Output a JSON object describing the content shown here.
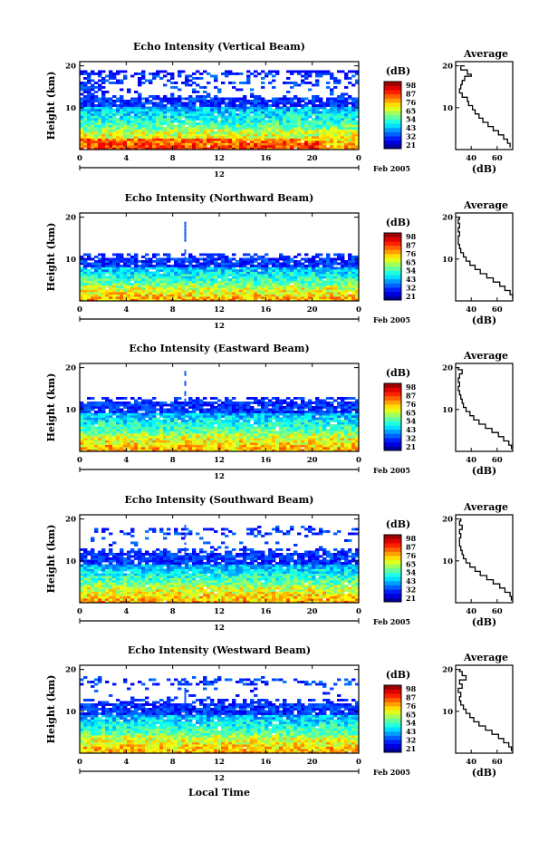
{
  "chart_data": [
    {
      "type": "heatmap",
      "title": "Echo Intensity (Vertical Beam)",
      "ylabel": "Height (km)",
      "yticks": [
        "20",
        "10"
      ],
      "xticks": [
        "0",
        "4",
        "8",
        "12",
        "16",
        "20",
        "0"
      ],
      "date_tick": "12",
      "date_suffix": "Feb 2005",
      "colorbar": {
        "unit": "(dB)",
        "ticks": [
          "98",
          "87",
          "76",
          "65",
          "54",
          "43",
          "32",
          "21"
        ]
      },
      "echo_top_km": 18.5,
      "layer_km": [
        10.5,
        12.5
      ],
      "bright_below_km": 5,
      "average": {
        "title": "Average",
        "xlabel": "(dB)",
        "xticks": [
          "40",
          "60"
        ],
        "yticks": [
          "20",
          "10"
        ],
        "profile": [
          [
            70,
            0.5
          ],
          [
            68,
            1.5
          ],
          [
            65,
            2.5
          ],
          [
            61,
            3.5
          ],
          [
            57,
            4.5
          ],
          [
            53,
            5.5
          ],
          [
            49,
            6.5
          ],
          [
            46,
            7.5
          ],
          [
            43,
            8.5
          ],
          [
            41,
            9.5
          ],
          [
            38,
            10.5
          ],
          [
            37,
            11.5
          ],
          [
            33,
            12.5
          ],
          [
            31,
            13.5
          ],
          [
            32,
            14.5
          ],
          [
            33,
            15.5
          ],
          [
            35,
            16.5
          ],
          [
            40,
            17.5
          ],
          [
            37,
            18
          ],
          [
            32,
            19
          ],
          [
            35,
            20
          ]
        ]
      }
    },
    {
      "type": "heatmap",
      "title": "Echo Intensity (Northward Beam)",
      "ylabel": "Height (km)",
      "yticks": [
        "20",
        "10"
      ],
      "xticks": [
        "0",
        "4",
        "8",
        "12",
        "16",
        "20",
        "0"
      ],
      "date_tick": "12",
      "date_suffix": "Feb 2005",
      "colorbar": {
        "unit": "(dB)",
        "ticks": [
          "98",
          "87",
          "76",
          "65",
          "54",
          "43",
          "32",
          "21"
        ]
      },
      "echo_top_km": 11,
      "layer_km": [
        8.5,
        10.5
      ],
      "bright_below_km": 4,
      "average": {
        "title": "Average",
        "xlabel": "(dB)",
        "xticks": [
          "40",
          "60"
        ],
        "yticks": [
          "20",
          "10"
        ],
        "profile": [
          [
            72,
            0.5
          ],
          [
            70,
            1.5
          ],
          [
            66,
            2.5
          ],
          [
            62,
            3.5
          ],
          [
            57,
            4.5
          ],
          [
            52,
            5.5
          ],
          [
            47,
            6.5
          ],
          [
            43,
            7.5
          ],
          [
            39,
            8.5
          ],
          [
            36,
            9.5
          ],
          [
            34,
            10.5
          ],
          [
            32,
            11.5
          ],
          [
            31,
            12.5
          ],
          [
            30,
            13.5
          ],
          [
            30,
            14.5
          ],
          [
            31,
            15.5
          ],
          [
            30,
            16.5
          ],
          [
            31,
            17.5
          ],
          [
            30,
            18.5
          ],
          [
            31,
            19.5
          ],
          [
            30,
            20
          ]
        ]
      }
    },
    {
      "type": "heatmap",
      "title": "Echo Intensity (Eastward Beam)",
      "ylabel": "Height (km)",
      "yticks": [
        "20",
        "10"
      ],
      "xticks": [
        "0",
        "4",
        "8",
        "12",
        "16",
        "20",
        "0"
      ],
      "date_tick": "12",
      "date_suffix": "Feb 2005",
      "colorbar": {
        "unit": "(dB)",
        "ticks": [
          "98",
          "87",
          "76",
          "65",
          "54",
          "43",
          "32",
          "21"
        ]
      },
      "echo_top_km": 12.5,
      "layer_km": [
        9.5,
        12
      ],
      "bright_below_km": 4.5,
      "average": {
        "title": "Average",
        "xlabel": "(dB)",
        "xticks": [
          "40",
          "60"
        ],
        "yticks": [
          "20",
          "10"
        ],
        "profile": [
          [
            71,
            0.5
          ],
          [
            69,
            1.5
          ],
          [
            65,
            2.5
          ],
          [
            61,
            3.5
          ],
          [
            56,
            4.5
          ],
          [
            51,
            5.5
          ],
          [
            46,
            6.5
          ],
          [
            42,
            7.5
          ],
          [
            39,
            8.5
          ],
          [
            36,
            9.5
          ],
          [
            34,
            10.5
          ],
          [
            33,
            11.5
          ],
          [
            32,
            12.5
          ],
          [
            31,
            13.5
          ],
          [
            30,
            14.5
          ],
          [
            31,
            15.5
          ],
          [
            30,
            16.5
          ],
          [
            31,
            17.5
          ],
          [
            33,
            18.5
          ],
          [
            30,
            19.5
          ],
          [
            31,
            20
          ]
        ]
      }
    },
    {
      "type": "heatmap",
      "title": "Echo Intensity (Southward Beam)",
      "ylabel": "Height (km)",
      "yticks": [
        "20",
        "10"
      ],
      "xticks": [
        "0",
        "4",
        "8",
        "12",
        "16",
        "20",
        "0"
      ],
      "date_tick": "12",
      "date_suffix": "Feb 2005",
      "colorbar": {
        "unit": "(dB)",
        "ticks": [
          "98",
          "87",
          "76",
          "65",
          "54",
          "43",
          "32",
          "21"
        ]
      },
      "echo_top_km": 18.5,
      "layer_km": [
        9.5,
        12
      ],
      "bright_below_km": 4.5,
      "average": {
        "title": "Average",
        "xlabel": "(dB)",
        "xticks": [
          "40",
          "60"
        ],
        "yticks": [
          "20",
          "10"
        ],
        "profile": [
          [
            71,
            0.5
          ],
          [
            70,
            1.5
          ],
          [
            66,
            2.5
          ],
          [
            62,
            3.5
          ],
          [
            57,
            4.5
          ],
          [
            52,
            5.5
          ],
          [
            47,
            6.5
          ],
          [
            43,
            7.5
          ],
          [
            39,
            8.5
          ],
          [
            36,
            9.5
          ],
          [
            34,
            10.5
          ],
          [
            33,
            11.5
          ],
          [
            32,
            12.5
          ],
          [
            31,
            13.5
          ],
          [
            31,
            14.5
          ],
          [
            32,
            15.5
          ],
          [
            31,
            16.5
          ],
          [
            33,
            17.5
          ],
          [
            31,
            18.5
          ],
          [
            32,
            19.5
          ],
          [
            31,
            20
          ]
        ]
      }
    },
    {
      "type": "heatmap",
      "title": "Echo Intensity (Westward Beam)",
      "ylabel": "Height (km)",
      "yticks": [
        "20",
        "10"
      ],
      "xticks": [
        "0",
        "4",
        "8",
        "12",
        "16",
        "20",
        "0"
      ],
      "date_tick": "12",
      "date_suffix": "Feb 2005",
      "xlabel": "Local Time",
      "colorbar": {
        "unit": "(dB)",
        "ticks": [
          "98",
          "87",
          "76",
          "65",
          "54",
          "43",
          "32",
          "21"
        ]
      },
      "echo_top_km": 18.5,
      "layer_km": [
        9.5,
        12
      ],
      "bright_below_km": 4.5,
      "average": {
        "title": "Average",
        "xlabel": "(dB)",
        "xticks": [
          "40",
          "60"
        ],
        "yticks": [
          "20",
          "10"
        ],
        "profile": [
          [
            71,
            0.5
          ],
          [
            69,
            1.5
          ],
          [
            65,
            2.5
          ],
          [
            61,
            3.5
          ],
          [
            56,
            4.5
          ],
          [
            51,
            5.5
          ],
          [
            46,
            6.5
          ],
          [
            42,
            7.5
          ],
          [
            39,
            8.5
          ],
          [
            36,
            9.5
          ],
          [
            34,
            10.5
          ],
          [
            32,
            11.5
          ],
          [
            31,
            12.5
          ],
          [
            32,
            13.5
          ],
          [
            30,
            14.5
          ],
          [
            33,
            15.5
          ],
          [
            31,
            16.5
          ],
          [
            36,
            17.5
          ],
          [
            33,
            18.5
          ],
          [
            31,
            19.5
          ],
          [
            32,
            20
          ]
        ]
      }
    }
  ]
}
